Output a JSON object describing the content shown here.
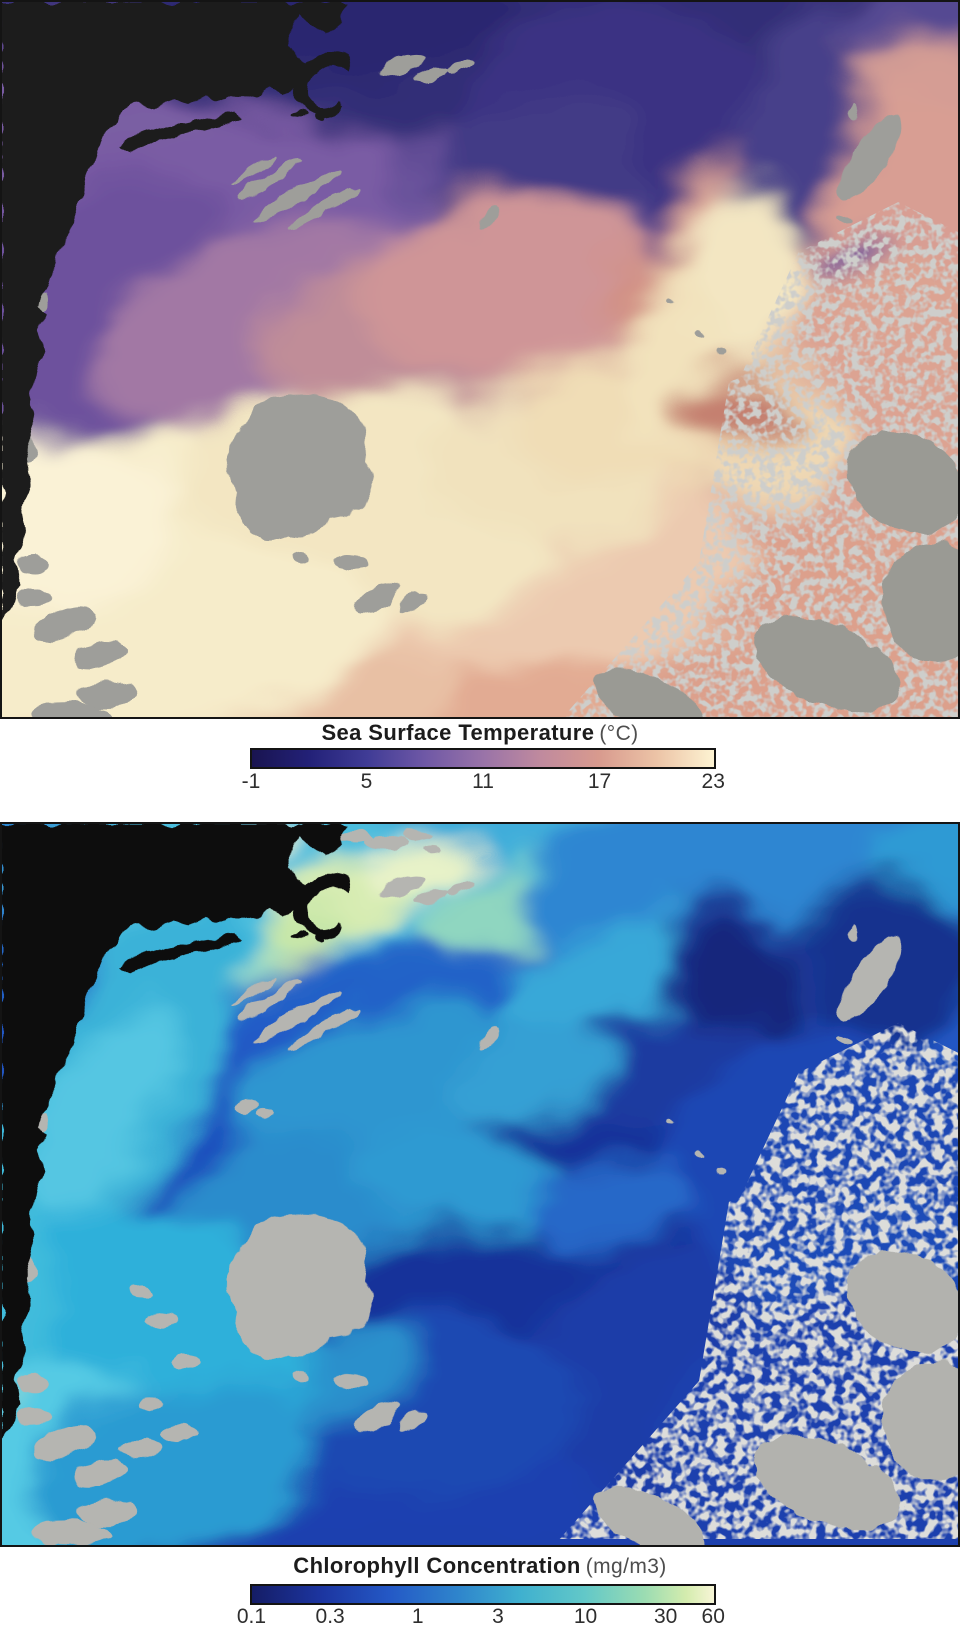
{
  "figure": {
    "background": "#ffffff",
    "frame_color": "#141414"
  },
  "sst": {
    "title": "Sea Surface Temperature",
    "unit": "(°C)",
    "map": {
      "land_color": "#1b1b1b",
      "cloud_color": "#9e9e9a",
      "cloud_core_color": "#9a9a94",
      "ocean_cold_color": "#322d77",
      "ocean_warm_color": "#f6ecca"
    },
    "colorbar": {
      "scale": "linear",
      "min": -1,
      "max": 23,
      "stops": [
        "#191450",
        "#232178",
        "#403c96",
        "#6f58a6",
        "#9973a8",
        "#c08a9e",
        "#d89a8e",
        "#ecc3a6",
        "#fdf3d2"
      ],
      "ticks": [
        {
          "label": "-1",
          "pos": 0
        },
        {
          "label": "5",
          "pos": 25
        },
        {
          "label": "11",
          "pos": 50
        },
        {
          "label": "17",
          "pos": 75
        },
        {
          "label": "23",
          "pos": 100
        }
      ]
    }
  },
  "chl": {
    "title": "Chlorophyll Concentration",
    "unit": "(mg/m3)",
    "map": {
      "land_color": "#0d0d0d",
      "cloud_color": "#b5b5b1",
      "cloud_core_color": "#b2b2ae",
      "ocean_low_color": "#12277c",
      "ocean_high_color": "#e7f2c8"
    },
    "colorbar": {
      "scale": "log",
      "min": 0.1,
      "max": 60,
      "stops": [
        "#151d66",
        "#1c35a0",
        "#2459c6",
        "#2f86cc",
        "#3fb0cf",
        "#62c8c8",
        "#9bdcb2",
        "#d4ecae",
        "#f7f5d6"
      ],
      "ticks": [
        {
          "label": "0.1",
          "pos": 0
        },
        {
          "label": "0.3",
          "pos": 17.2
        },
        {
          "label": "1",
          "pos": 36
        },
        {
          "label": "3",
          "pos": 53.2
        },
        {
          "label": "10",
          "pos": 72
        },
        {
          "label": "30",
          "pos": 89.2
        },
        {
          "label": "60",
          "pos": 100
        }
      ]
    }
  },
  "chart_data": [
    {
      "type": "heatmap",
      "title": "Sea Surface Temperature",
      "units": "°C",
      "scale": "linear",
      "domain": [
        -1,
        23
      ],
      "colorbar_ticks": [
        -1,
        5,
        11,
        17,
        23
      ],
      "palette": [
        "#191450",
        "#403c96",
        "#9973a8",
        "#d89a8e",
        "#fdf3d2"
      ],
      "legend_position": "below-map"
    },
    {
      "type": "heatmap",
      "title": "Chlorophyll Concentration",
      "units": "mg/m3",
      "scale": "log",
      "domain": [
        0.1,
        60
      ],
      "colorbar_ticks": [
        0.1,
        0.3,
        1,
        3,
        10,
        30,
        60
      ],
      "palette": [
        "#151d66",
        "#2459c6",
        "#3fb0cf",
        "#9bdcb2",
        "#f7f5d6"
      ],
      "legend_position": "below-map"
    }
  ]
}
